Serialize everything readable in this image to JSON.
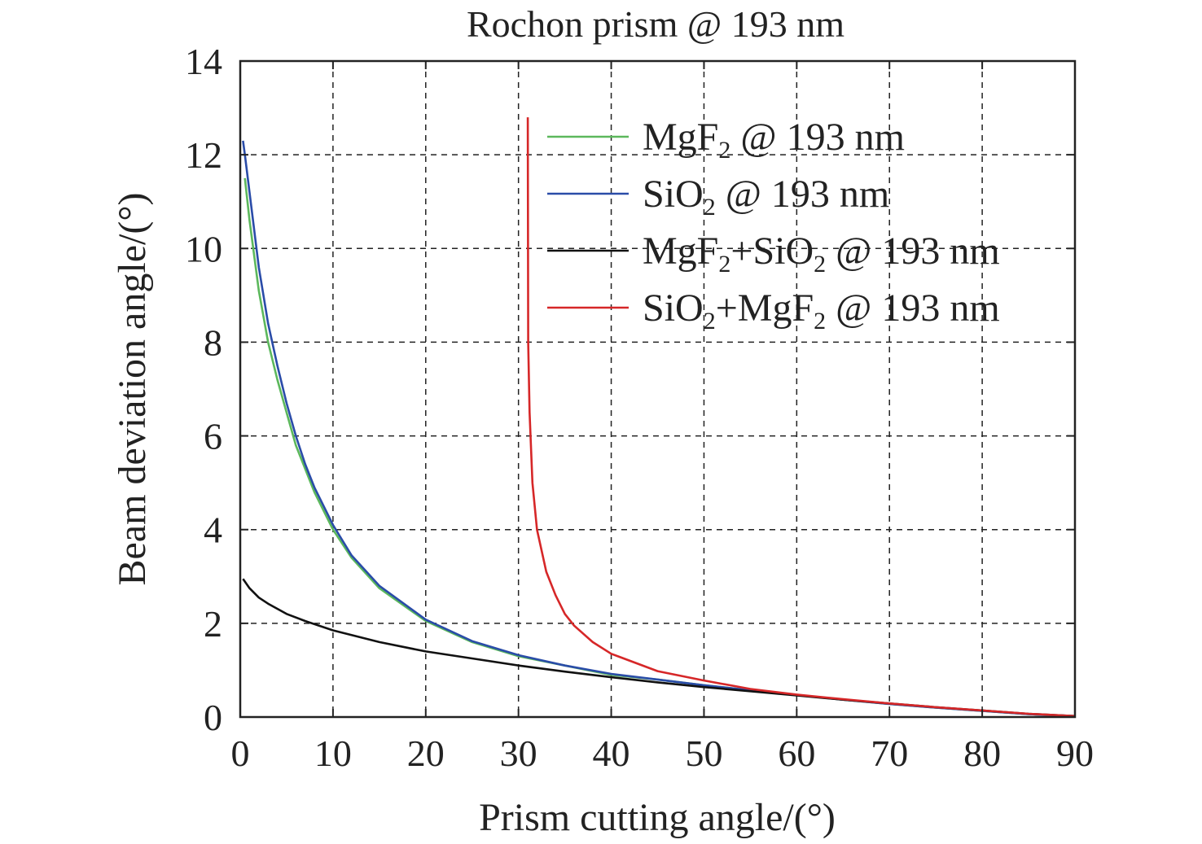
{
  "chart_data": {
    "type": "line",
    "title": "Rochon prism @ 193 nm",
    "xlabel": "Prism cutting angle/(°)",
    "ylabel": "Beam deviation angle/(°)",
    "xlim": [
      0,
      90
    ],
    "ylim": [
      0,
      14
    ],
    "xticks": [
      "0",
      "10",
      "20",
      "30",
      "40",
      "50",
      "60",
      "70",
      "80",
      "90"
    ],
    "yticks": [
      "0",
      "2",
      "4",
      "6",
      "8",
      "10",
      "12",
      "14"
    ],
    "grid": true,
    "legend_position": "top-right",
    "series": [
      {
        "name": "MgF2 @ 193 nm",
        "legend": [
          "MgF",
          "2",
          " @ 193 nm"
        ],
        "color": "#5cb85c",
        "x": [
          0.5,
          1,
          2,
          3,
          4,
          5,
          6,
          7,
          8,
          10,
          12,
          15,
          20,
          25,
          30,
          35,
          40,
          45,
          50,
          55,
          60,
          65,
          70,
          75,
          80,
          85,
          90
        ],
        "y": [
          11.5,
          10.6,
          9.1,
          8.0,
          7.2,
          6.5,
          5.8,
          5.3,
          4.8,
          4.0,
          3.4,
          2.75,
          2.05,
          1.6,
          1.3,
          1.1,
          0.9,
          0.8,
          0.68,
          0.57,
          0.47,
          0.37,
          0.28,
          0.2,
          0.13,
          0.06,
          0.02
        ]
      },
      {
        "name": "SiO2 @ 193 nm",
        "legend": [
          "SiO",
          "2",
          " @ 193 nm"
        ],
        "color": "#2a4ca8",
        "x": [
          0.3,
          0.5,
          1,
          2,
          3,
          4,
          5,
          6,
          7,
          8,
          10,
          12,
          15,
          20,
          25,
          30,
          35,
          40,
          45,
          50,
          55,
          60,
          65,
          70,
          75,
          80,
          85,
          90
        ],
        "y": [
          12.3,
          12.0,
          11.2,
          9.6,
          8.4,
          7.5,
          6.7,
          6.0,
          5.4,
          4.9,
          4.1,
          3.45,
          2.8,
          2.08,
          1.62,
          1.32,
          1.1,
          0.92,
          0.8,
          0.68,
          0.57,
          0.47,
          0.37,
          0.28,
          0.2,
          0.13,
          0.06,
          0.02
        ]
      },
      {
        "name": "MgF2+SiO2 @ 193 nm",
        "legend": [
          "MgF",
          "2",
          "+SiO",
          "2",
          " @ 193 nm"
        ],
        "color": "#111111",
        "x": [
          0.3,
          1,
          2,
          3,
          5,
          7,
          10,
          15,
          20,
          25,
          30,
          35,
          40,
          45,
          50,
          55,
          60,
          65,
          70,
          75,
          80,
          85,
          90
        ],
        "y": [
          2.95,
          2.75,
          2.55,
          2.42,
          2.2,
          2.05,
          1.85,
          1.6,
          1.4,
          1.25,
          1.1,
          0.97,
          0.85,
          0.74,
          0.64,
          0.55,
          0.46,
          0.37,
          0.29,
          0.21,
          0.14,
          0.07,
          0.02
        ]
      },
      {
        "name": "SiO2+MgF2 @ 193 nm",
        "legend": [
          "SiO",
          "2",
          "+MgF",
          "2",
          " @ 193 nm"
        ],
        "color": "#d62728",
        "x": [
          31,
          31.05,
          31.2,
          31.5,
          32,
          33,
          34,
          35,
          36,
          38,
          40,
          45,
          50,
          55,
          60,
          65,
          70,
          75,
          80,
          85,
          90
        ],
        "y": [
          12.8,
          8.0,
          6.5,
          5.0,
          4.0,
          3.1,
          2.6,
          2.2,
          1.95,
          1.6,
          1.35,
          0.98,
          0.78,
          0.6,
          0.48,
          0.38,
          0.29,
          0.21,
          0.14,
          0.07,
          0.02
        ]
      }
    ]
  }
}
